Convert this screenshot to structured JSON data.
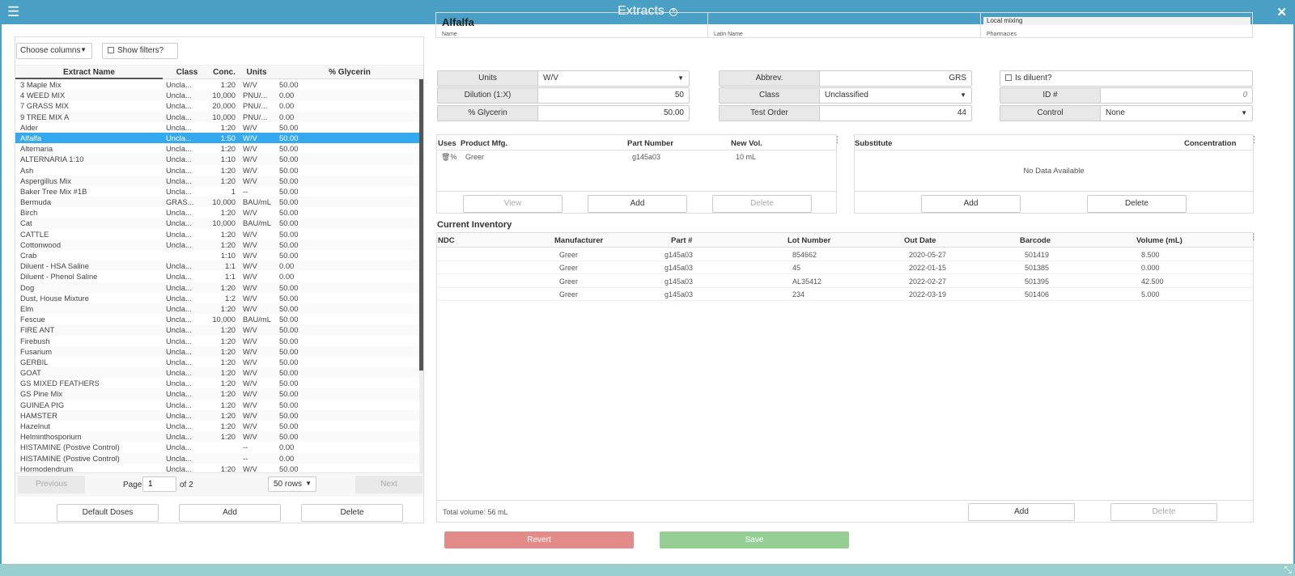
{
  "window": {
    "title": "Extracts",
    "help_icon": "?",
    "menu_icon": "☰",
    "close_icon": "✕",
    "resize_icon": "⤡"
  },
  "list": {
    "choose_columns": "Choose columns",
    "show_filters": "Show filters?",
    "columns": [
      "Extract Name",
      "Class",
      "Conc.",
      "Units",
      "% Glycerin"
    ],
    "selected_index": 5,
    "rows": [
      [
        "3 Maple Mix",
        "Uncla...",
        "1:20",
        "W/V",
        "50.00"
      ],
      [
        "4 WEED MIX",
        "Uncla...",
        "10,000",
        "PNU/...",
        "0.00"
      ],
      [
        "7 GRASS MIX",
        "Uncla...",
        "20,000",
        "PNU/...",
        "0.00"
      ],
      [
        "9 TREE MIX A",
        "Uncla...",
        "10,000",
        "PNU/...",
        "0.00"
      ],
      [
        "Alder",
        "Uncla...",
        "1:20",
        "W/V",
        "50.00"
      ],
      [
        "Alfalfa",
        "Uncla...",
        "1:50",
        "W/V",
        "50.00"
      ],
      [
        "Alternaria",
        "Uncla...",
        "1:20",
        "W/V",
        "50.00"
      ],
      [
        "ALTERNARIA 1:10",
        "Uncla...",
        "1:10",
        "W/V",
        "50.00"
      ],
      [
        "Ash",
        "Uncla...",
        "1:20",
        "W/V",
        "50.00"
      ],
      [
        "Aspergillus Mix",
        "Uncla...",
        "1:20",
        "W/V",
        "50.00"
      ],
      [
        "Baker Tree Mix #1B",
        "Uncla...",
        "1",
        "--",
        "50.00"
      ],
      [
        "Bermuda",
        "GRAS...",
        "10,000",
        "BAU/mL",
        "50.00"
      ],
      [
        "Birch",
        "Uncla...",
        "1:20",
        "W/V",
        "50.00"
      ],
      [
        "Cat",
        "Uncla...",
        "10,000",
        "BAU/mL",
        "50.00"
      ],
      [
        "CATTLE",
        "Uncla...",
        "1:20",
        "W/V",
        "50.00"
      ],
      [
        "Cottonwood",
        "Uncla...",
        "1:20",
        "W/V",
        "50.00"
      ],
      [
        "Crab",
        "",
        "1:10",
        "W/V",
        "50.00"
      ],
      [
        "Diluent - HSA Saline",
        "Uncla...",
        "1:1",
        "W/V",
        "0.00"
      ],
      [
        "Diluent - Phenol Saline",
        "Uncla...",
        "1:1",
        "W/V",
        "0.00"
      ],
      [
        "Dog",
        "Uncla...",
        "1:20",
        "W/V",
        "50.00"
      ],
      [
        "Dust, House Mixture",
        "Uncla...",
        "1:2",
        "W/V",
        "50.00"
      ],
      [
        "Elm",
        "Uncla...",
        "1:20",
        "W/V",
        "50.00"
      ],
      [
        "Fescue",
        "Uncla...",
        "10,000",
        "BAU/mL",
        "50.00"
      ],
      [
        "FIRE ANT",
        "Uncla...",
        "1:20",
        "W/V",
        "50.00"
      ],
      [
        "Firebush",
        "Uncla...",
        "1:20",
        "W/V",
        "50.00"
      ],
      [
        "Fusarium",
        "Uncla...",
        "1:20",
        "W/V",
        "50.00"
      ],
      [
        "GERBIL",
        "Uncla...",
        "1:20",
        "W/V",
        "50.00"
      ],
      [
        "GOAT",
        "Uncla...",
        "1:20",
        "W/V",
        "50.00"
      ],
      [
        "GS MIXED FEATHERS",
        "Uncla...",
        "1:20",
        "W/V",
        "50.00"
      ],
      [
        "GS Pine Mix",
        "Uncla...",
        "1:20",
        "W/V",
        "50.00"
      ],
      [
        "GUINEA PIG",
        "Uncla...",
        "1:20",
        "W/V",
        "50.00"
      ],
      [
        "HAMSTER",
        "Uncla...",
        "1:20",
        "W/V",
        "50.00"
      ],
      [
        "Hazelnut",
        "Uncla...",
        "1:20",
        "W/V",
        "50.00"
      ],
      [
        "Helminthosporium",
        "Uncla...",
        "1:20",
        "W/V",
        "50.00"
      ],
      [
        "HISTAMINE (Postive Control)",
        "Uncla...",
        "",
        "--",
        "0.00"
      ],
      [
        "HISTAMINE (Postive Control)",
        "Uncla...",
        "",
        "--",
        "0.00"
      ],
      [
        "Hormodendrum",
        "Uncla...",
        "1:20",
        "W/V",
        "50.00"
      ]
    ],
    "pager": {
      "previous": "Previous",
      "page_label": "Page",
      "page": "1",
      "of": "of 2",
      "rows": "50 rows",
      "next": "Next"
    },
    "buttons": {
      "default_doses": "Default Doses",
      "add": "Add",
      "delete": "Delete"
    }
  },
  "detail": {
    "name": "Alfalfa",
    "name_label": "Name",
    "latin_name": "",
    "latin_label": "Latin Name",
    "local_mixing": "Local mixing",
    "pharmacies_label": "Pharmacies",
    "units_label": "Units",
    "units": "W/V",
    "dilution_label": "Dilution (1:X)",
    "dilution": "50",
    "glycerin_label": "% Glycerin",
    "glycerin": "50.00",
    "abbrev_label": "Abbrev.",
    "abbrev": "GRS",
    "class_label": "Class",
    "class": "Unclassified",
    "test_order_label": "Test Order",
    "test_order": "44",
    "is_diluent": "Is diluent?",
    "id_label": "ID #",
    "id": "0",
    "control_label": "Control",
    "control": "None"
  },
  "products": {
    "columns": [
      "Uses",
      "Product Mfg.",
      "Part Number",
      "New Vol."
    ],
    "rows": [
      {
        "uses": "🗑%",
        "mfg": "Greer",
        "part": "g145a03",
        "vol": "10 mL"
      }
    ],
    "buttons": {
      "view": "View",
      "add": "Add",
      "delete": "Delete"
    }
  },
  "substitutes": {
    "columns": [
      "Substitute",
      "Concentration"
    ],
    "empty": "No Data Available",
    "buttons": {
      "add": "Add",
      "delete": "Delete"
    }
  },
  "inventory": {
    "title": "Current Inventory",
    "columns": [
      "NDC",
      "Manufacturer",
      "Part #",
      "Lot Number",
      "Out Date",
      "Barcode",
      "Volume (mL)"
    ],
    "rows": [
      [
        "",
        "Greer",
        "g145a03",
        "854662",
        "2020-05-27",
        "501419",
        "8.500"
      ],
      [
        "",
        "Greer",
        "g145a03",
        "45",
        "2022-01-15",
        "501385",
        "0.000"
      ],
      [
        "",
        "Greer",
        "g145a03",
        "AL35412",
        "2022-02-27",
        "501395",
        "42.500"
      ],
      [
        "",
        "Greer",
        "g145a03",
        "234",
        "2022-03-19",
        "501406",
        "5.000"
      ]
    ],
    "total": "Total volume: 56 mL",
    "buttons": {
      "add": "Add",
      "delete": "Delete"
    }
  },
  "actions": {
    "revert": "Revert",
    "save": "Save"
  }
}
